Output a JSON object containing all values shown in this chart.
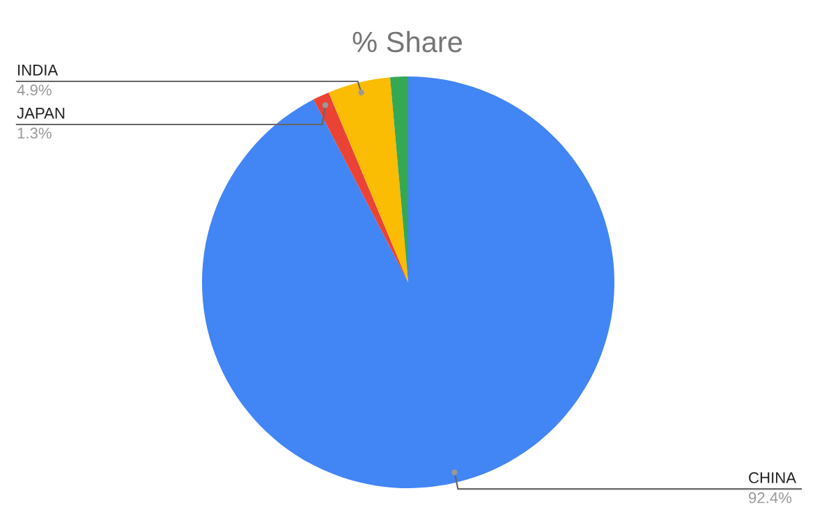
{
  "chart_data": {
    "type": "pie",
    "title": "% Share",
    "categories": [
      "CHINA",
      "JAPAN",
      "INDIA",
      null
    ],
    "values": [
      92.4,
      1.3,
      4.9,
      1.4
    ],
    "value_labels": [
      "92.4%",
      "1.3%",
      "4.9%",
      null
    ],
    "colors": [
      "#4285f4",
      "#ea4335",
      "#fbbc04",
      "#34a853"
    ],
    "legend": false
  }
}
